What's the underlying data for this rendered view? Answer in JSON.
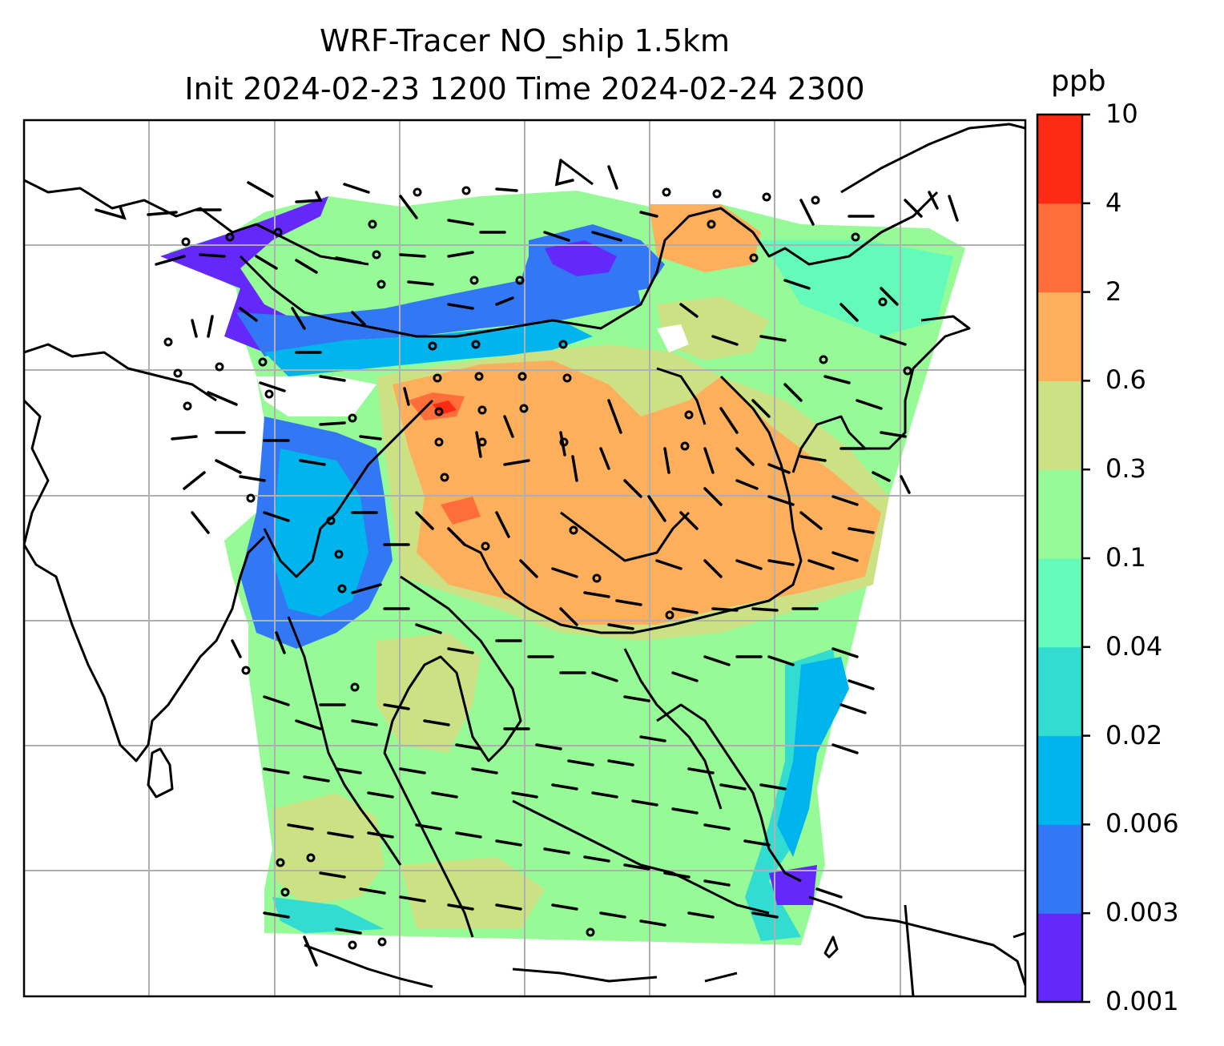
{
  "title_line1": "WRF-Tracer NO_ship 1.5km",
  "title_line2": "Init 2024-02-23 1200 Time 2024-02-24 2300",
  "colorbar": {
    "units": "ppb",
    "tick_labels": [
      "0.001",
      "0.003",
      "0.006",
      "0.02",
      "0.04",
      "0.1",
      "0.3",
      "0.6",
      "2",
      "4",
      "10"
    ],
    "colors": [
      "#6428fa",
      "#3278f5",
      "#00b4ee",
      "#32dcd0",
      "#64faba",
      "#96fa96",
      "#cce184",
      "#fdaf5c",
      "#ff6e3a",
      "#ff2a14"
    ]
  },
  "map": {
    "gridline_color": "#b0b0b0",
    "coastline_color": "#000000",
    "wind_barb_color": "#000000"
  }
}
